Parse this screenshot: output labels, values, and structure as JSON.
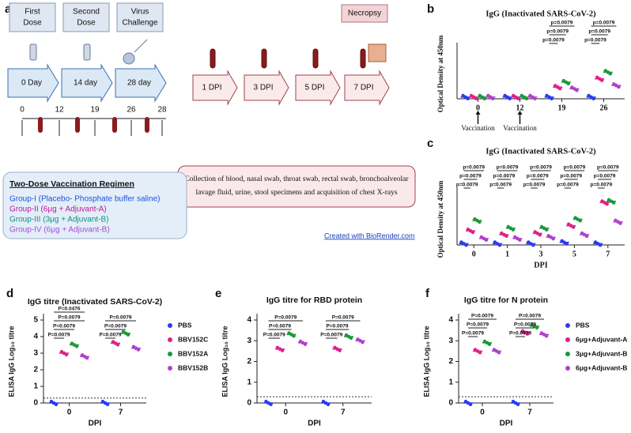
{
  "panel_a": {
    "label": "a",
    "stage_boxes": [
      [
        "First",
        "Dose"
      ],
      [
        "Second",
        "Dose"
      ],
      [
        "Virus",
        "Challenge"
      ]
    ],
    "necropsy": "Necropsy",
    "day_arrows": [
      "0 Day",
      "14 day",
      "28 day"
    ],
    "timeline": [
      "0",
      "12",
      "19",
      "26",
      "28"
    ],
    "dpi_arrows": [
      "1 DPI",
      "3 DPI",
      "5 DPI",
      "7 DPI"
    ],
    "collection": [
      "Collection of blood, nasal swab, throat swab, rectal swab, bronchoalveolar",
      "lavage  fluid, urine, stool specimens and acquisition of chest X-rays"
    ],
    "regimen": {
      "title": "Two-Dose Vaccination Regimen",
      "groups": [
        "Group-I  (Placebo- Phosphate buffer saline)",
        "Group-II  (6μg + Adjuvant-A)",
        "Group-III (3μg + Adjuvant-B)",
        "Group-IV (6μg + Adjuvant-B)"
      ]
    },
    "credit": "Created with BioRender.com"
  },
  "chart_data": [
    {
      "type": "strip",
      "panel": "b",
      "title": "IgG (Inactivated SARS-CoV-2)",
      "y_label": "Optical Density at 450nm",
      "categories": [
        "0",
        "12",
        "19",
        "26"
      ],
      "ylim": [
        0,
        3
      ],
      "series": [
        {
          "color": "#2a3cf0",
          "values": [
            0.1,
            0.1,
            0.1,
            0.1
          ]
        },
        {
          "color": "#e0208a",
          "values": [
            0.1,
            0.1,
            0.7,
            1.2
          ]
        },
        {
          "color": "#1a9a3a",
          "values": [
            0.1,
            0.1,
            1.0,
            1.6
          ]
        },
        {
          "color": "#b040d0",
          "values": [
            0.1,
            0.1,
            0.6,
            0.8
          ]
        }
      ],
      "brackets": [
        [],
        [],
        [
          "p=0.0079",
          "p=0.0079",
          "p=0.0079"
        ],
        [
          "p=0.0079",
          "p=0.0079",
          "p=0.0079"
        ]
      ],
      "annotations": [
        {
          "text": "Vaccination",
          "category": "0"
        },
        {
          "text": "Vaccination",
          "category": "12"
        }
      ]
    },
    {
      "type": "strip",
      "panel": "c",
      "title": "IgG (Inactivated SARS-CoV-2)",
      "y_label": "Optical Density at 450nm",
      "x_label": "DPI",
      "categories": [
        "0",
        "1",
        "3",
        "5",
        "7"
      ],
      "ylim": [
        0,
        4
      ],
      "series": [
        {
          "color": "#2a3cf0",
          "values": [
            0.1,
            0.1,
            0.1,
            0.2,
            0.1
          ]
        },
        {
          "color": "#e0208a",
          "values": [
            1.1,
            0.8,
            0.9,
            1.5,
            3.3
          ]
        },
        {
          "color": "#1a9a3a",
          "values": [
            1.9,
            1.3,
            1.3,
            2.0,
            3.4
          ]
        },
        {
          "color": "#b040d0",
          "values": [
            0.5,
            0.5,
            0.6,
            0.8,
            1.8
          ]
        }
      ],
      "brackets": [
        [
          "p=0.0079",
          "p=0.0079",
          "p=0.0079"
        ],
        [
          "p=0.0079",
          "p=0.0079",
          "p=0.0079"
        ],
        [
          "p=0.0079",
          "p=0.0079",
          "p=0.0079"
        ],
        [
          "p=0.0079",
          "p=0.0079",
          "p=0.0079"
        ],
        [
          "p=0.0079",
          "p=0.0079",
          "p=0.0079"
        ]
      ]
    },
    {
      "type": "strip",
      "panel": "d",
      "title": "IgG titre (Inactivated SARS-CoV-2)",
      "y_label": "ELISA IgG Log₁₀ titre",
      "x_label": "DPI",
      "categories": [
        "0",
        "7"
      ],
      "ylim": [
        0,
        5
      ],
      "yticks": [
        0,
        1,
        2,
        3,
        4,
        5
      ],
      "threshold": 0.3,
      "series": [
        {
          "name": "PBS",
          "color": "#2a3cf0",
          "values": [
            0,
            0
          ]
        },
        {
          "name": "BBV152C",
          "color": "#e0208a",
          "values": [
            3.0,
            3.6
          ]
        },
        {
          "name": "BBV152A",
          "color": "#1a9a3a",
          "values": [
            3.5,
            4.2
          ]
        },
        {
          "name": "BBV152B",
          "color": "#b040d0",
          "values": [
            2.8,
            3.3
          ]
        }
      ],
      "brackets": [
        [
          "P=0.0079",
          "P=0.0079",
          "P=0.0079",
          "P=0.0476"
        ],
        [
          "P=0.0079",
          "P=0.0079",
          "P=0.0079"
        ]
      ]
    },
    {
      "type": "strip",
      "panel": "e",
      "title": "IgG titre for RBD protein",
      "y_label": "ELISA IgG Log₁₀ titre",
      "x_label": "DPI",
      "categories": [
        "0",
        "7"
      ],
      "ylim": [
        0,
        4
      ],
      "yticks": [
        0,
        1,
        2,
        3,
        4
      ],
      "threshold": 0.3,
      "series": [
        {
          "color": "#2a3cf0",
          "values": [
            0,
            0
          ]
        },
        {
          "color": "#e0208a",
          "values": [
            2.6,
            2.6
          ]
        },
        {
          "color": "#1a9a3a",
          "values": [
            3.3,
            3.2
          ]
        },
        {
          "color": "#b040d0",
          "values": [
            2.9,
            3.0
          ]
        }
      ],
      "brackets": [
        [
          "P=0.0079",
          "P=0.0079",
          "P=0.0079"
        ],
        [
          "P=0.0079",
          "P=0.0079",
          "P=0.0079"
        ]
      ]
    },
    {
      "type": "strip",
      "panel": "f",
      "title": "IgG titre for N protein",
      "y_label": "ELISA IgG Log₁₀ titre",
      "x_label": "DPI",
      "categories": [
        "0",
        "7"
      ],
      "ylim": [
        0,
        4
      ],
      "yticks": [
        0,
        1,
        2,
        3,
        4
      ],
      "threshold": 0.3,
      "series": [
        {
          "name": "PBS",
          "color": "#2a3cf0",
          "values": [
            0,
            0
          ]
        },
        {
          "name": "6μg+Adjuvant-A",
          "color": "#e0208a",
          "values": [
            2.5,
            3.4
          ]
        },
        {
          "name": "3μg+Adjuvant-B",
          "color": "#1a9a3a",
          "values": [
            2.9,
            3.7
          ]
        },
        {
          "name": "6μg+Adjuvant-B",
          "color": "#b040d0",
          "values": [
            2.5,
            3.3
          ]
        }
      ],
      "brackets": [
        [
          "P=0.0079",
          "P=0.0079",
          "P=0.0079"
        ],
        [
          "P=0.0079",
          "P=0.0079",
          "P=0.0079"
        ]
      ]
    }
  ]
}
